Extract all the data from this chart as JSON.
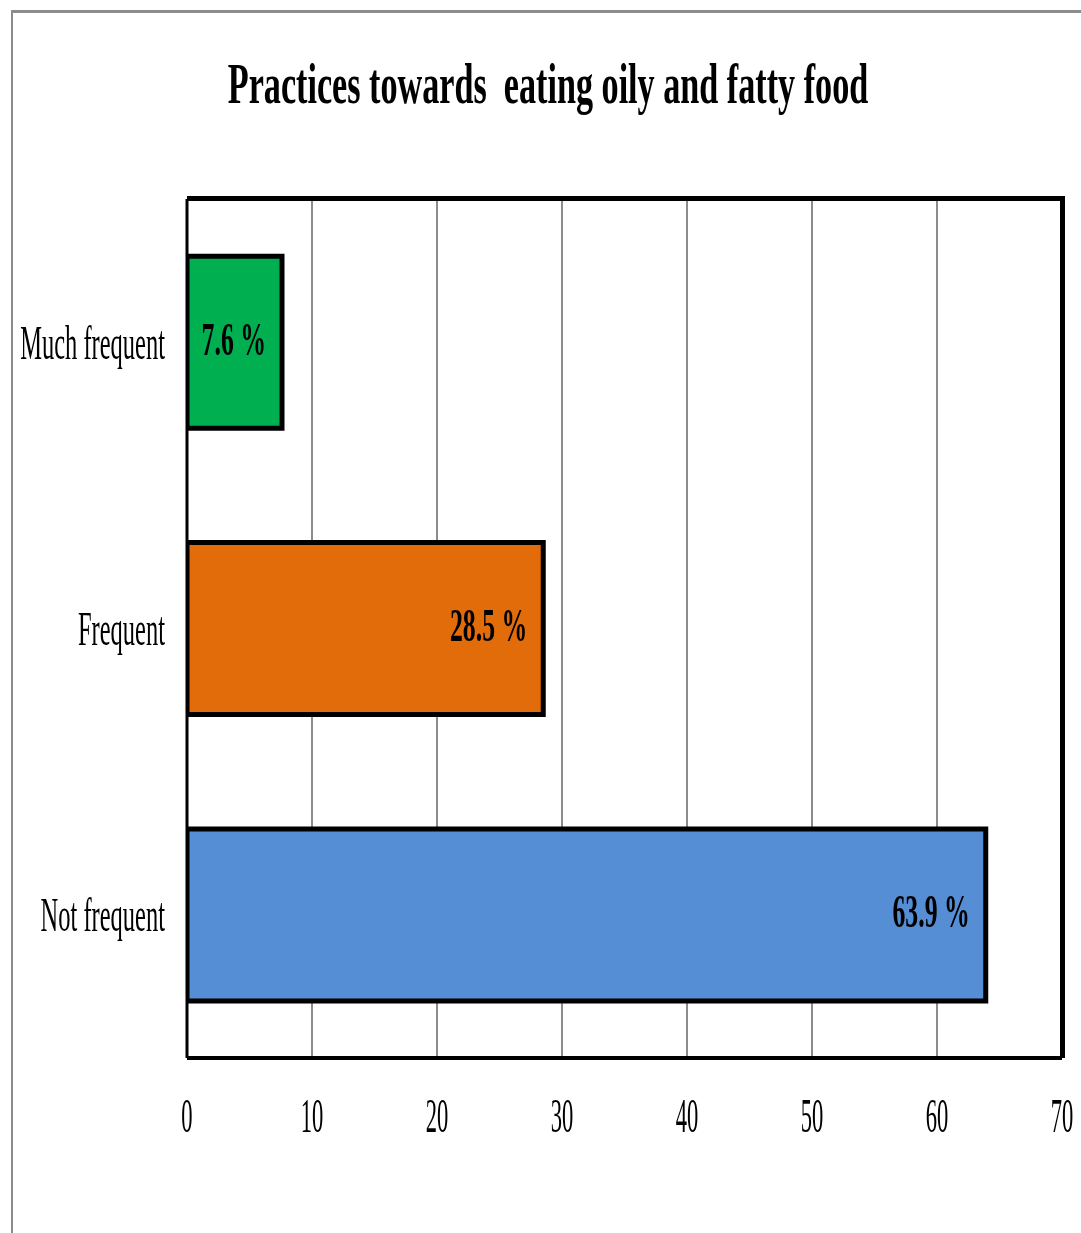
{
  "chart_data": {
    "type": "bar",
    "orientation": "horizontal",
    "title": "Practices towards  eating oily and fatty food",
    "categories": [
      "Much frequent",
      "Frequent",
      "Not frequent"
    ],
    "values": [
      7.6,
      28.5,
      63.9
    ],
    "colors": [
      "#00b050",
      "#e36c0a",
      "#558ed5"
    ],
    "value_labels": [
      "7.6 %",
      "28.5 %",
      "63.9 %"
    ],
    "xlim": [
      0,
      70
    ],
    "xticks": [
      0,
      10,
      20,
      30,
      40,
      50,
      60,
      70
    ],
    "grid": "x"
  }
}
